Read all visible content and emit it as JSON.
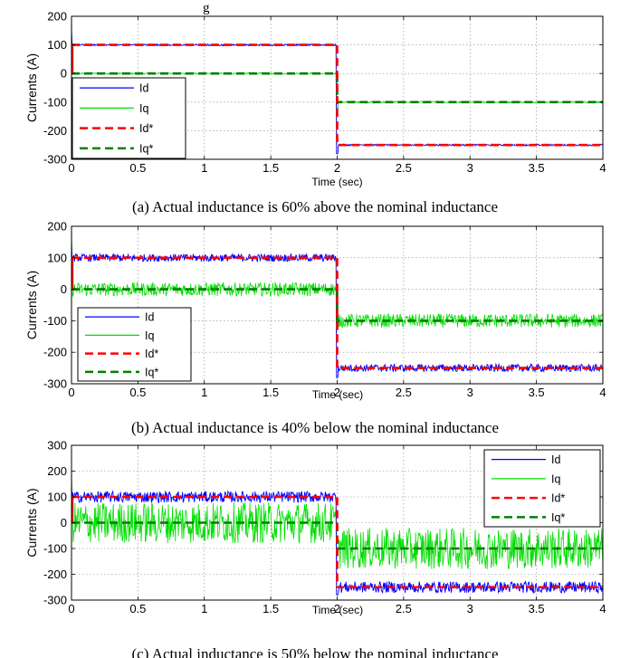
{
  "figure": {
    "top_fragment": "g"
  },
  "chart_data": [
    {
      "type": "line",
      "panel": "a",
      "caption": "(a) Actual inductance is 60% above the nominal inductance",
      "xlabel": "Time (sec)",
      "ylabel": "Currents (A)",
      "xlim": [
        0,
        4
      ],
      "ylim": [
        -300,
        200
      ],
      "xticks": [
        "0",
        "0.5",
        "1",
        "1.5",
        "2",
        "2.5",
        "3",
        "3.5",
        "4"
      ],
      "yticks": [
        "-300",
        "-200",
        "-100",
        "0",
        "100",
        "200"
      ],
      "grid": true,
      "legend_position": "bottom-left",
      "noise": {
        "Id": 3,
        "Iq": 3
      },
      "series": [
        {
          "name": "Id",
          "color": "#0000ff",
          "style": "solid",
          "values_before_step": 100,
          "values_after_step": -250
        },
        {
          "name": "Iq",
          "color": "#00dd00",
          "style": "solid",
          "values_before_step": 0,
          "values_after_step": -100
        },
        {
          "name": "Id*",
          "color": "#ff0000",
          "style": "dashed",
          "values_before_step": 100,
          "values_after_step": -250
        },
        {
          "name": "Iq*",
          "color": "#008000",
          "style": "dashed",
          "values_before_step": 0,
          "values_after_step": -100
        }
      ],
      "step_time": 2
    },
    {
      "type": "line",
      "panel": "b",
      "caption": "(b) Actual inductance is 40% below the nominal inductance",
      "xlabel": "Time (sec)",
      "ylabel": "Currents (A)",
      "xlim": [
        0,
        4
      ],
      "ylim": [
        -300,
        200
      ],
      "xticks": [
        "0",
        "0.5",
        "1",
        "1.5",
        "2",
        "2.5",
        "3",
        "3.5",
        "4"
      ],
      "yticks": [
        "-300",
        "-200",
        "-100",
        "0",
        "100",
        "200"
      ],
      "grid": true,
      "legend_position": "bottom-left",
      "noise": {
        "Id": 12,
        "Iq": 22
      },
      "series": [
        {
          "name": "Id",
          "color": "#0000ff",
          "style": "solid",
          "values_before_step": 100,
          "values_after_step": -250
        },
        {
          "name": "Iq",
          "color": "#00dd00",
          "style": "solid",
          "values_before_step": 0,
          "values_after_step": -100
        },
        {
          "name": "Id*",
          "color": "#ff0000",
          "style": "dashed",
          "values_before_step": 100,
          "values_after_step": -250
        },
        {
          "name": "Iq*",
          "color": "#008000",
          "style": "dashed",
          "values_before_step": 0,
          "values_after_step": -100
        }
      ],
      "step_time": 2
    },
    {
      "type": "line",
      "panel": "c",
      "caption": "(c) Actual inductance is 50% below the nominal inductance",
      "xlabel": "Time (sec)",
      "ylabel": "Currents (A)",
      "xlim": [
        0,
        4
      ],
      "ylim": [
        -300,
        300
      ],
      "xticks": [
        "0",
        "0.5",
        "1",
        "1.5",
        "2",
        "2.5",
        "3",
        "3.5",
        "4"
      ],
      "yticks": [
        "-300",
        "-200",
        "-100",
        "0",
        "100",
        "200",
        "300"
      ],
      "grid": true,
      "legend_position": "top-right",
      "noise": {
        "Id": 22,
        "Iq": 80
      },
      "series": [
        {
          "name": "Id",
          "color": "#0000ff",
          "style": "solid",
          "values_before_step": 100,
          "values_after_step": -250
        },
        {
          "name": "Iq",
          "color": "#00dd00",
          "style": "solid",
          "values_before_step": 0,
          "values_after_step": -100
        },
        {
          "name": "Id*",
          "color": "#ff0000",
          "style": "dashed",
          "values_before_step": 100,
          "values_after_step": -250
        },
        {
          "name": "Iq*",
          "color": "#008000",
          "style": "dashed",
          "values_before_step": 0,
          "values_after_step": -100
        }
      ],
      "step_time": 2
    }
  ]
}
